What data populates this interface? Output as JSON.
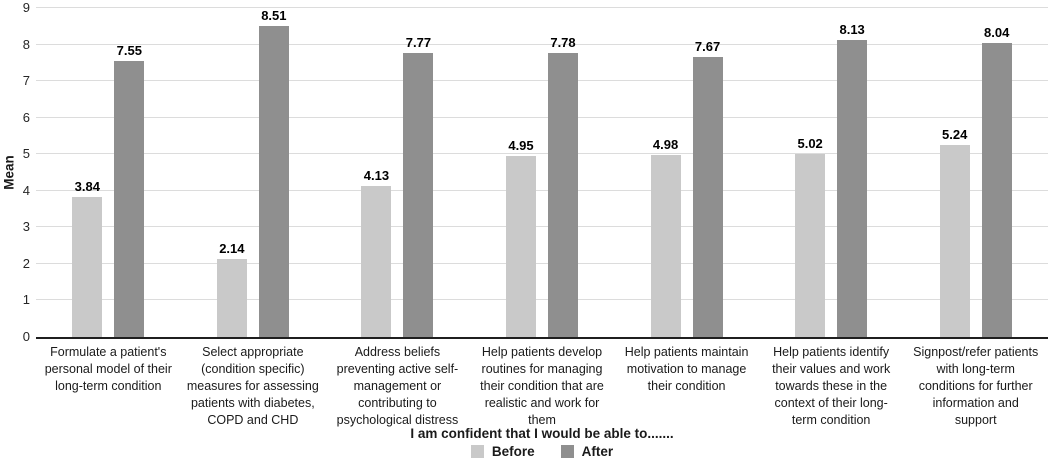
{
  "chart_data": {
    "type": "bar",
    "title": "",
    "xlabel": "I am confident that I would be able to.......",
    "ylabel": "Mean",
    "ylim": [
      0,
      9
    ],
    "yticks": [
      0,
      1,
      2,
      3,
      4,
      5,
      6,
      7,
      8,
      9
    ],
    "grid": true,
    "legend_position": "bottom",
    "value_labels": true,
    "categories": [
      "Formulate a patient's\npersonal model of their\nlong-term condition",
      "Select appropriate\n(condition specific)\nmeasures for assessing\npatients with diabetes,\nCOPD and CHD",
      "Address beliefs\npreventing active self-\nmanagement or\ncontributing to\npsychological distress",
      "Help patients develop\nroutines for managing\ntheir condition that are\nrealistic and work for\nthem",
      "Help patients maintain\nmotivation to manage\ntheir condition",
      "Help patients identify\ntheir values and work\ntowards these in the\ncontext of their long-\nterm condition",
      "Signpost/refer patients\nwith long-term\nconditions for further\ninformation and\nsupport"
    ],
    "series": [
      {
        "name": "Before",
        "color": "#c9c9c9",
        "values": [
          3.84,
          2.14,
          4.13,
          4.95,
          4.98,
          5.02,
          5.24
        ]
      },
      {
        "name": "After",
        "color": "#8f8f8f",
        "values": [
          7.55,
          8.51,
          7.77,
          7.78,
          7.67,
          8.13,
          8.04
        ]
      }
    ],
    "colors": {
      "gridline": "#dcdcdc",
      "axis": "#1f1f1f",
      "label_text": "#000000"
    }
  }
}
